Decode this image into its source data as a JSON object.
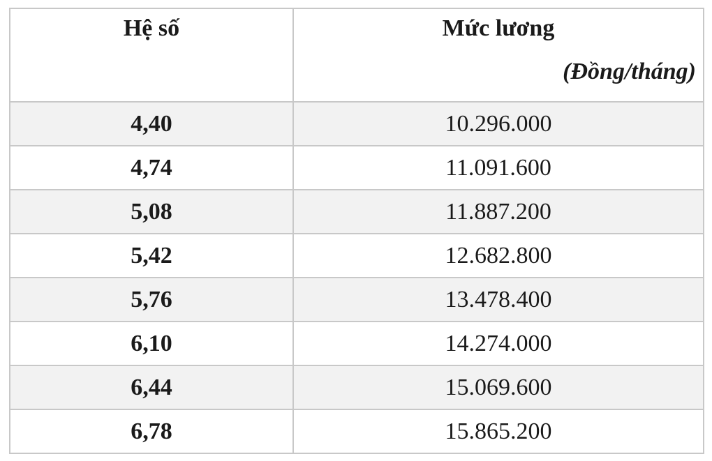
{
  "table": {
    "headers": {
      "coefficient": "Hệ số",
      "salary": "Mức lương",
      "salary_unit": "(Đồng/tháng)"
    },
    "rows": [
      {
        "coefficient": "4,40",
        "salary": "10.296.000"
      },
      {
        "coefficient": "4,74",
        "salary": "11.091.600"
      },
      {
        "coefficient": "5,08",
        "salary": "11.887.200"
      },
      {
        "coefficient": "5,42",
        "salary": "12.682.800"
      },
      {
        "coefficient": "5,76",
        "salary": "13.478.400"
      },
      {
        "coefficient": "6,10",
        "salary": "14.274.000"
      },
      {
        "coefficient": "6,44",
        "salary": "15.069.600"
      },
      {
        "coefficient": "6,78",
        "salary": "15.865.200"
      }
    ]
  }
}
